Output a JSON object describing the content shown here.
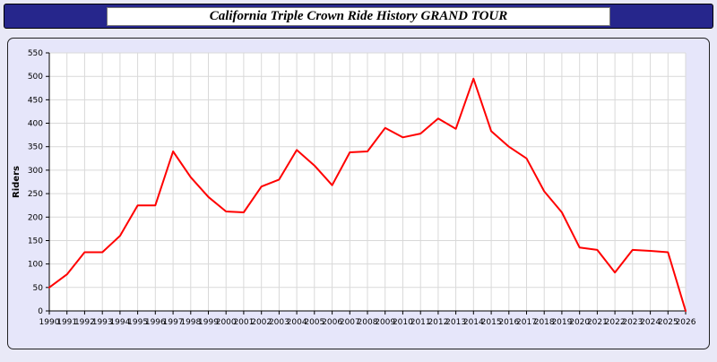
{
  "header": {
    "title": "California Triple Crown Ride History GRAND TOUR"
  },
  "chart_data": {
    "type": "line",
    "title": "California Triple Crown Ride History GRAND TOUR",
    "xlabel": "",
    "ylabel": "Riders",
    "ylim": [
      0,
      550
    ],
    "ytick_step": 50,
    "grid": true,
    "legend": "none",
    "line_color": "#ff0000",
    "categories": [
      "1990",
      "1991",
      "1992",
      "1993",
      "1994",
      "1995",
      "1996",
      "1997",
      "1998",
      "1999",
      "2000",
      "2001",
      "2002",
      "2003",
      "2004",
      "2005",
      "2006",
      "2007",
      "2008",
      "2009",
      "2010",
      "2011",
      "2012",
      "2013",
      "2014",
      "2015",
      "2016",
      "2017",
      "2018",
      "2019",
      "2020",
      "2021",
      "2022",
      "2023",
      "2024",
      "2025",
      "2026"
    ],
    "values": [
      50,
      78,
      125,
      125,
      160,
      225,
      225,
      340,
      285,
      243,
      212,
      210,
      265,
      280,
      343,
      310,
      268,
      338,
      340,
      390,
      370,
      378,
      410,
      388,
      495,
      383,
      350,
      325,
      255,
      210,
      135,
      130,
      82,
      130,
      128,
      125,
      0
    ]
  }
}
